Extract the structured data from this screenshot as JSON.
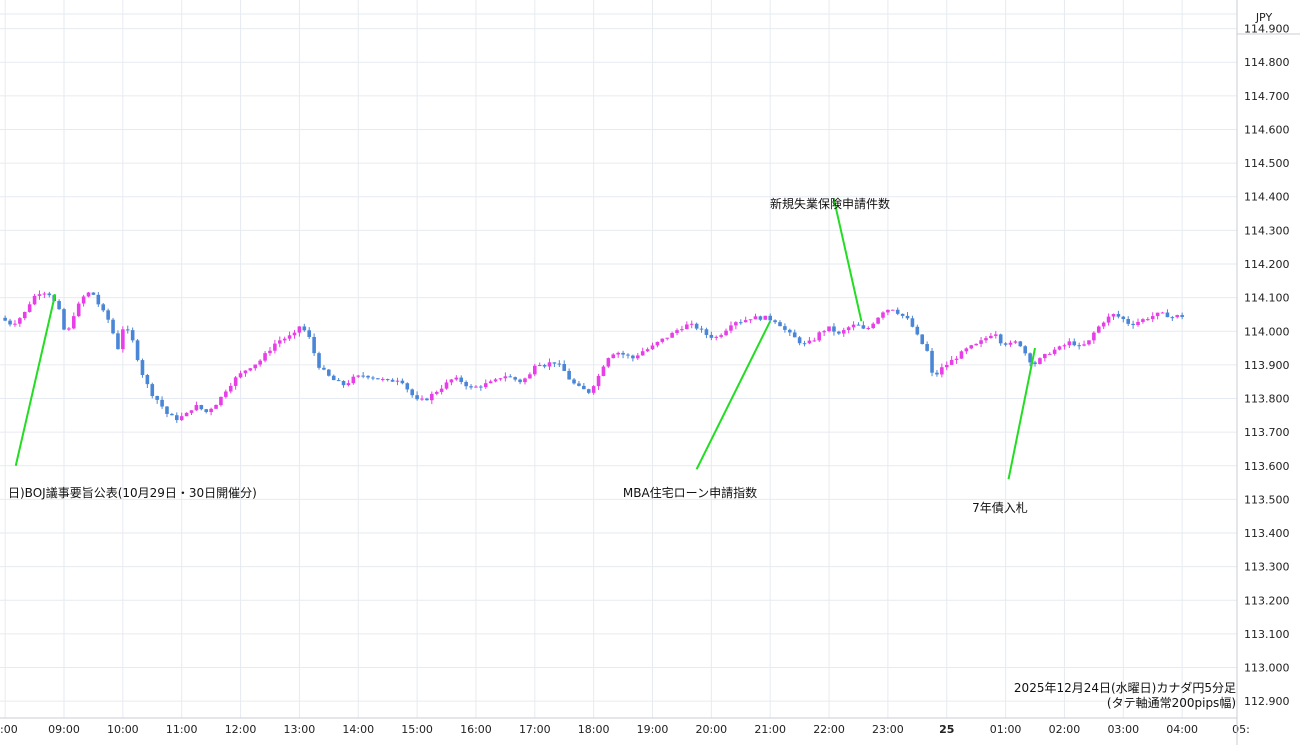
{
  "chart_data": {
    "type": "candlestick",
    "title": "2025年12月24日(水曜日)カナダ円5分足",
    "subtitle": "(タテ軸通常200pips幅)",
    "currency_label": "JPY",
    "ylim": [
      112.85,
      114.985
    ],
    "y_ticks": [
      "114.900",
      "114.800",
      "114.700",
      "114.600",
      "114.500",
      "114.400",
      "114.300",
      "114.200",
      "114.100",
      "114.000",
      "113.900",
      "113.800",
      "113.700",
      "113.600",
      "113.500",
      "113.400",
      "113.300",
      "113.200",
      "113.100",
      "113.000",
      "112.900"
    ],
    "x_ticks": [
      ":00",
      "09:00",
      "10:00",
      "11:00",
      "12:00",
      "13:00",
      "14:00",
      "15:00",
      "16:00",
      "17:00",
      "18:00",
      "19:00",
      "20:00",
      "21:00",
      "22:00",
      "23:00",
      "25",
      "01:00",
      "02:00",
      "03:00",
      "04:00",
      "05:"
    ],
    "grid": true,
    "colors": {
      "up": "#e83ee8",
      "down": "#4a86d8",
      "annotation_line": "#22dd22"
    },
    "price_path": [
      [
        8.0,
        114.04
      ],
      [
        8.2,
        114.02
      ],
      [
        8.4,
        114.05
      ],
      [
        8.55,
        114.1
      ],
      [
        8.7,
        114.12
      ],
      [
        8.85,
        114.11
      ],
      [
        9.0,
        114.06
      ],
      [
        9.12,
        113.98
      ],
      [
        9.25,
        114.05
      ],
      [
        9.4,
        114.1
      ],
      [
        9.55,
        114.12
      ],
      [
        9.7,
        114.07
      ],
      [
        9.85,
        114.03
      ],
      [
        10.0,
        113.95
      ],
      [
        10.1,
        114.02
      ],
      [
        10.25,
        113.97
      ],
      [
        10.4,
        113.88
      ],
      [
        10.55,
        113.82
      ],
      [
        10.7,
        113.79
      ],
      [
        10.85,
        113.75
      ],
      [
        11.0,
        113.74
      ],
      [
        11.15,
        113.75
      ],
      [
        11.3,
        113.78
      ],
      [
        11.5,
        113.76
      ],
      [
        11.7,
        113.79
      ],
      [
        11.85,
        113.83
      ],
      [
        12.0,
        113.86
      ],
      [
        12.2,
        113.89
      ],
      [
        12.4,
        113.91
      ],
      [
        12.55,
        113.94
      ],
      [
        12.7,
        113.97
      ],
      [
        12.85,
        113.98
      ],
      [
        13.0,
        113.99
      ],
      [
        13.1,
        114.02
      ],
      [
        13.25,
        113.98
      ],
      [
        13.4,
        113.9
      ],
      [
        13.55,
        113.87
      ],
      [
        13.7,
        113.85
      ],
      [
        13.85,
        113.84
      ],
      [
        14.0,
        113.86
      ],
      [
        14.2,
        113.87
      ],
      [
        14.4,
        113.86
      ],
      [
        14.6,
        113.85
      ],
      [
        14.8,
        113.86
      ],
      [
        14.95,
        113.82
      ],
      [
        15.1,
        113.79
      ],
      [
        15.25,
        113.8
      ],
      [
        15.4,
        113.82
      ],
      [
        15.55,
        113.84
      ],
      [
        15.7,
        113.86
      ],
      [
        15.85,
        113.85
      ],
      [
        16.0,
        113.83
      ],
      [
        16.2,
        113.84
      ],
      [
        16.4,
        113.85
      ],
      [
        16.55,
        113.87
      ],
      [
        16.7,
        113.86
      ],
      [
        16.85,
        113.85
      ],
      [
        17.0,
        113.87
      ],
      [
        17.1,
        113.91
      ],
      [
        17.25,
        113.9
      ],
      [
        17.4,
        113.91
      ],
      [
        17.55,
        113.89
      ],
      [
        17.7,
        113.85
      ],
      [
        17.85,
        113.83
      ],
      [
        18.0,
        113.82
      ],
      [
        18.15,
        113.86
      ],
      [
        18.3,
        113.92
      ],
      [
        18.45,
        113.94
      ],
      [
        18.6,
        113.93
      ],
      [
        18.75,
        113.92
      ],
      [
        18.9,
        113.94
      ],
      [
        19.05,
        113.95
      ],
      [
        19.2,
        113.97
      ],
      [
        19.4,
        113.99
      ],
      [
        19.55,
        114.01
      ],
      [
        19.7,
        114.02
      ],
      [
        19.85,
        114.01
      ],
      [
        20.0,
        113.99
      ],
      [
        20.15,
        113.98
      ],
      [
        20.3,
        114.0
      ],
      [
        20.45,
        114.03
      ],
      [
        20.6,
        114.03
      ],
      [
        20.75,
        114.04
      ],
      [
        20.9,
        114.04
      ],
      [
        21.0,
        114.04
      ],
      [
        21.2,
        114.03
      ],
      [
        21.35,
        114.0
      ],
      [
        21.5,
        113.98
      ],
      [
        21.65,
        113.96
      ],
      [
        21.8,
        113.97
      ],
      [
        21.95,
        114.0
      ],
      [
        22.1,
        114.01
      ],
      [
        22.25,
        113.99
      ],
      [
        22.4,
        114.01
      ],
      [
        22.55,
        114.02
      ],
      [
        22.7,
        114.0
      ],
      [
        22.85,
        114.03
      ],
      [
        23.0,
        114.06
      ],
      [
        23.15,
        114.07
      ],
      [
        23.3,
        114.05
      ],
      [
        23.45,
        114.03
      ],
      [
        23.6,
        113.98
      ],
      [
        23.75,
        113.94
      ],
      [
        23.85,
        113.86
      ],
      [
        24.0,
        113.89
      ],
      [
        24.15,
        113.91
      ],
      [
        24.3,
        113.93
      ],
      [
        24.45,
        113.95
      ],
      [
        24.6,
        113.96
      ],
      [
        24.75,
        113.98
      ],
      [
        24.9,
        114.0
      ],
      [
        25.0,
        113.97
      ],
      [
        25.15,
        113.96
      ],
      [
        25.3,
        113.97
      ],
      [
        25.4,
        113.94
      ],
      [
        25.55,
        113.9
      ],
      [
        25.7,
        113.92
      ],
      [
        25.85,
        113.94
      ],
      [
        26.0,
        113.95
      ],
      [
        26.2,
        113.97
      ],
      [
        26.35,
        113.95
      ],
      [
        26.5,
        113.97
      ],
      [
        26.6,
        114.0
      ],
      [
        26.75,
        114.03
      ],
      [
        26.9,
        114.05
      ],
      [
        27.05,
        114.04
      ],
      [
        27.2,
        114.02
      ],
      [
        27.35,
        114.03
      ],
      [
        27.5,
        114.04
      ],
      [
        27.65,
        114.05
      ],
      [
        27.8,
        114.05
      ],
      [
        27.95,
        114.04
      ],
      [
        28.0,
        114.045
      ]
    ],
    "annotations": [
      {
        "text": "日)BOJ議事要旨公表(10月29日・30日開催分)",
        "line_from": [
          8.18,
          113.6
        ],
        "line_to": [
          8.85,
          114.11
        ]
      },
      {
        "text": "MBA住宅ローン申請指数",
        "line_from": [
          19.75,
          113.59
        ],
        "line_to": [
          21.0,
          114.03
        ]
      },
      {
        "text": "新規失業保険申請件数",
        "line_from": [
          22.08,
          114.395
        ],
        "line_to": [
          22.55,
          114.03
        ]
      },
      {
        "text": "7年債入札",
        "line_from": [
          25.05,
          113.56
        ],
        "line_to": [
          25.5,
          113.95
        ]
      }
    ]
  }
}
